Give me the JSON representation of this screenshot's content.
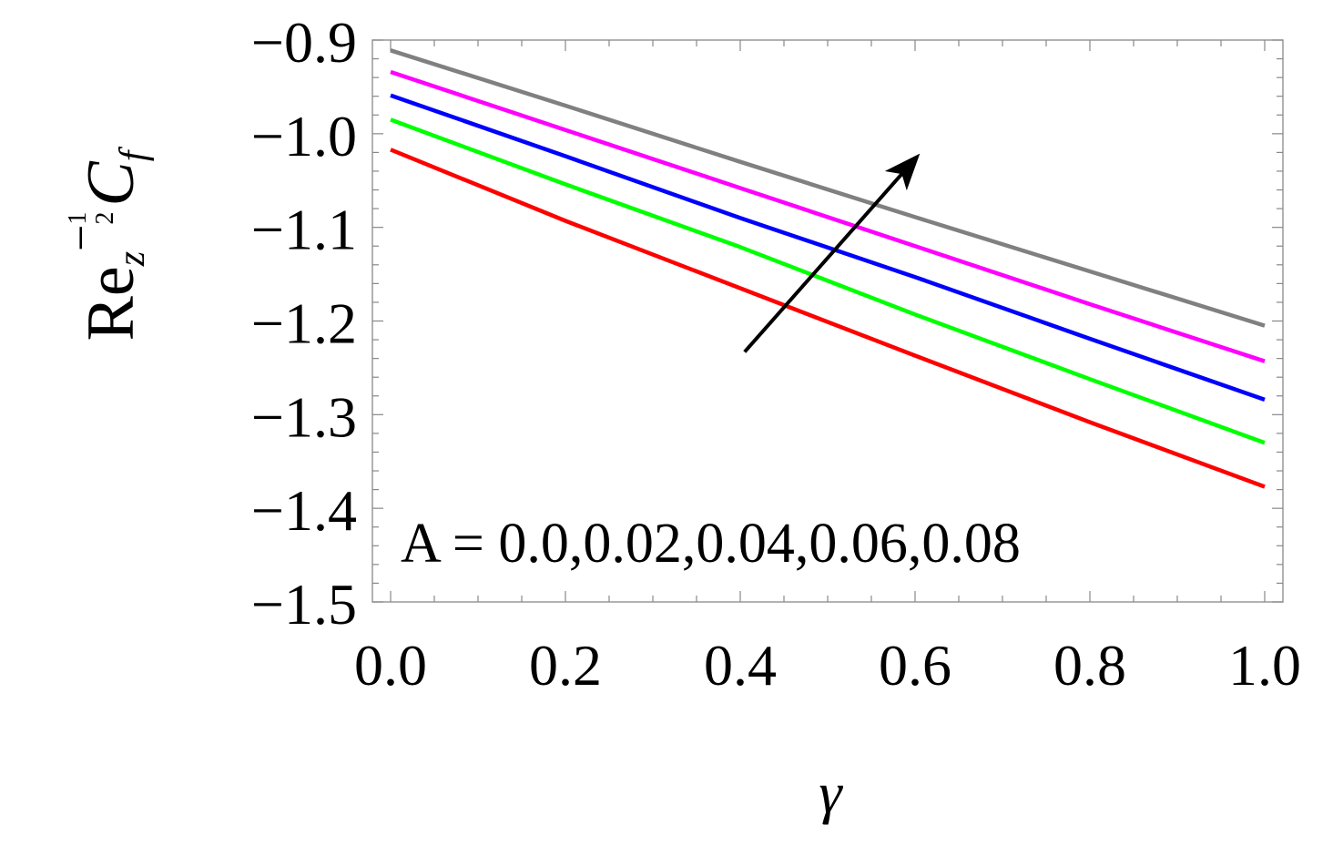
{
  "chart_data": {
    "type": "line",
    "title": "",
    "xlabel": "γ",
    "ylabel": {
      "base": "Re",
      "subscript": "z",
      "exponent_sign": "−",
      "exponent_numerator": "1",
      "exponent_denominator": "2",
      "symbol": "C",
      "symbol_subscript": "f"
    },
    "xlim": [
      0.0,
      1.0
    ],
    "ylim": [
      -1.5,
      -0.9
    ],
    "x_ticks": [
      "0.0",
      "0.2",
      "0.4",
      "0.6",
      "0.8",
      "1.0"
    ],
    "y_ticks": [
      "−0.9",
      "−1.0",
      "−1.1",
      "−1.2",
      "−1.3",
      "−1.4",
      "−1.5"
    ],
    "x": [
      0.0,
      0.2,
      0.4,
      0.6,
      0.8,
      1.0
    ],
    "series": [
      {
        "color": "#ff0000",
        "values": [
          -1.017,
          -1.093,
          -1.165,
          -1.237,
          -1.308,
          -1.377
        ]
      },
      {
        "color": "#00ff00",
        "values": [
          -0.985,
          -1.054,
          -1.121,
          -1.193,
          -1.262,
          -1.33
        ]
      },
      {
        "color": "#0000ff",
        "values": [
          -0.959,
          -1.024,
          -1.09,
          -1.153,
          -1.219,
          -1.284
        ]
      },
      {
        "color": "#ff00ff",
        "values": [
          -0.934,
          -0.996,
          -1.058,
          -1.12,
          -1.182,
          -1.243
        ]
      },
      {
        "color": "#808080",
        "values": [
          -0.911,
          -0.97,
          -1.03,
          -1.089,
          -1.147,
          -1.205
        ]
      }
    ],
    "annotation": {
      "text": "A = 0.0,0.02,0.04,0.06,0.08",
      "arrow_from": [
        0.405,
        -1.233
      ],
      "arrow_to": [
        0.6,
        -1.027
      ],
      "arrow_color": "#000000"
    },
    "grid": false,
    "legend": "none"
  }
}
